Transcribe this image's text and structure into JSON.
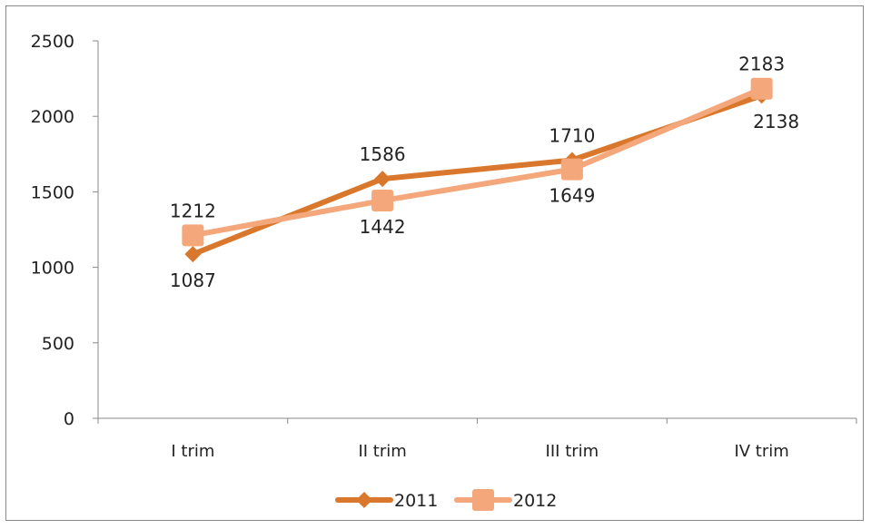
{
  "chart_data": {
    "type": "line",
    "categories": [
      "I trim",
      "II trim",
      "III trim",
      "IV trim"
    ],
    "series": [
      {
        "name": "2011",
        "values": [
          1087,
          1586,
          1710,
          2138
        ],
        "color": "#D9782D",
        "marker": "diamond-icon"
      },
      {
        "name": "2012",
        "values": [
          1212,
          1442,
          1649,
          2183
        ],
        "color": "#F4A77A",
        "marker": "square-icon"
      }
    ],
    "y_ticks": [
      "0",
      "500",
      "1000",
      "1500",
      "2000",
      "2500"
    ],
    "ylim": [
      0,
      2500
    ],
    "grid": false,
    "legend_position": "bottom"
  }
}
